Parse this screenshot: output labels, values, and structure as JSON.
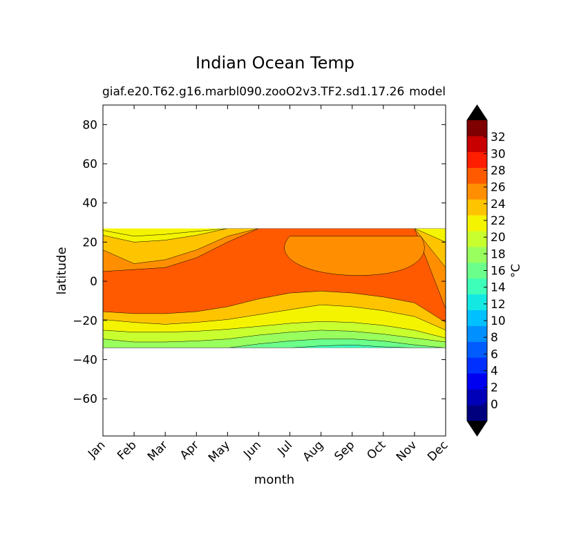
{
  "chart_data": {
    "type": "heatmap",
    "title": "Indian Ocean Temp",
    "subtitle_left": "giaf.e20.T62.g16.marbl090.zooO2v3.TF2.sd1.17.26",
    "subtitle_right": "model",
    "xlabel": "month",
    "ylabel": "latitude",
    "x_categories": [
      "Jan",
      "Feb",
      "Mar",
      "Apr",
      "May",
      "Jun",
      "Jul",
      "Aug",
      "Sep",
      "Oct",
      "Nov",
      "Dec"
    ],
    "ylim": [
      -79,
      90
    ],
    "y_ticks": [
      "80",
      "60",
      "40",
      "20",
      "0",
      "−20",
      "−40",
      "−60"
    ],
    "y_tick_values": [
      80,
      60,
      40,
      20,
      0,
      -20,
      -40,
      -60
    ],
    "data_lat_range": [
      -34,
      27
    ],
    "colorbar": {
      "label": "°C",
      "levels": [
        -2,
        0,
        2,
        4,
        6,
        8,
        10,
        12,
        14,
        16,
        18,
        20,
        22,
        24,
        26,
        28,
        30,
        32,
        34
      ],
      "tick_labels": [
        "0",
        "2",
        "4",
        "6",
        "8",
        "10",
        "12",
        "14",
        "16",
        "18",
        "20",
        "22",
        "24",
        "26",
        "28",
        "30",
        "32"
      ],
      "tick_values": [
        0,
        2,
        4,
        6,
        8,
        10,
        12,
        14,
        16,
        18,
        20,
        22,
        24,
        26,
        28,
        30,
        32
      ],
      "colors": [
        "#00007f",
        "#0000b8",
        "#0000f1",
        "#0030ff",
        "#005cff",
        "#0090ff",
        "#00c0ff",
        "#14e8e3",
        "#3dffba",
        "#6bff8b",
        "#99ff5e",
        "#c8ff2e",
        "#f4f400",
        "#ffc400",
        "#ff8f00",
        "#ff5a00",
        "#ff1e00",
        "#c80000",
        "#7f0000"
      ],
      "under_color": "#000000",
      "over_color": "#000000",
      "extend": "both"
    },
    "isotherm_boundaries": [
      {
        "value": 22,
        "lat": [
          26,
          23,
          24,
          25.5,
          27,
          27,
          27,
          27,
          27,
          27,
          27,
          27
        ]
      },
      {
        "value": 24,
        "lat": [
          23.5,
          20,
          21,
          23.5,
          27,
          27,
          27,
          27,
          27,
          27,
          27,
          20
        ]
      },
      {
        "value": 26,
        "lat": [
          16,
          9,
          11,
          16,
          23,
          27,
          27,
          27,
          27,
          27,
          27,
          7
        ]
      },
      {
        "value": 28,
        "lat": [
          5,
          6,
          7,
          12,
          20,
          27,
          27,
          27,
          27,
          27,
          27,
          -14
        ],
        "hole": [
          {
            "lat": 3,
            "x": [
              6.7,
              9.7
            ]
          },
          {
            "lat": 23,
            "x": [
              6,
              10.2
            ]
          }
        ]
      },
      {
        "value": 26,
        "lat": [
          -15.5,
          -16.5,
          -16.5,
          -15.5,
          -13,
          -9,
          -6,
          -5,
          -6,
          -8,
          -11,
          -21
        ]
      },
      {
        "value": 24,
        "lat": [
          -19.5,
          -21,
          -22,
          -21,
          -19.5,
          -17,
          -14.5,
          -12,
          -13,
          -15,
          -18,
          -25
        ]
      },
      {
        "value": 22,
        "lat": [
          -25,
          -26,
          -26,
          -25.5,
          -24.5,
          -23,
          -21.5,
          -20.5,
          -21,
          -22.5,
          -25,
          -29
        ]
      },
      {
        "value": 20,
        "lat": [
          -29.5,
          -31,
          -31,
          -30.5,
          -29.5,
          -27.5,
          -26,
          -25,
          -25.5,
          -27,
          -29,
          -31
        ]
      },
      {
        "value": 18,
        "lat": [
          -34,
          -34,
          -34,
          -34,
          -34,
          -32,
          -30.5,
          -29.5,
          -29.5,
          -30.5,
          -32.5,
          -34
        ]
      },
      {
        "value": 16,
        "lat": [
          -34,
          -34,
          -34,
          -34,
          -34,
          -34,
          -34,
          -33,
          -32.5,
          -33.5,
          -34,
          -34
        ]
      }
    ]
  }
}
